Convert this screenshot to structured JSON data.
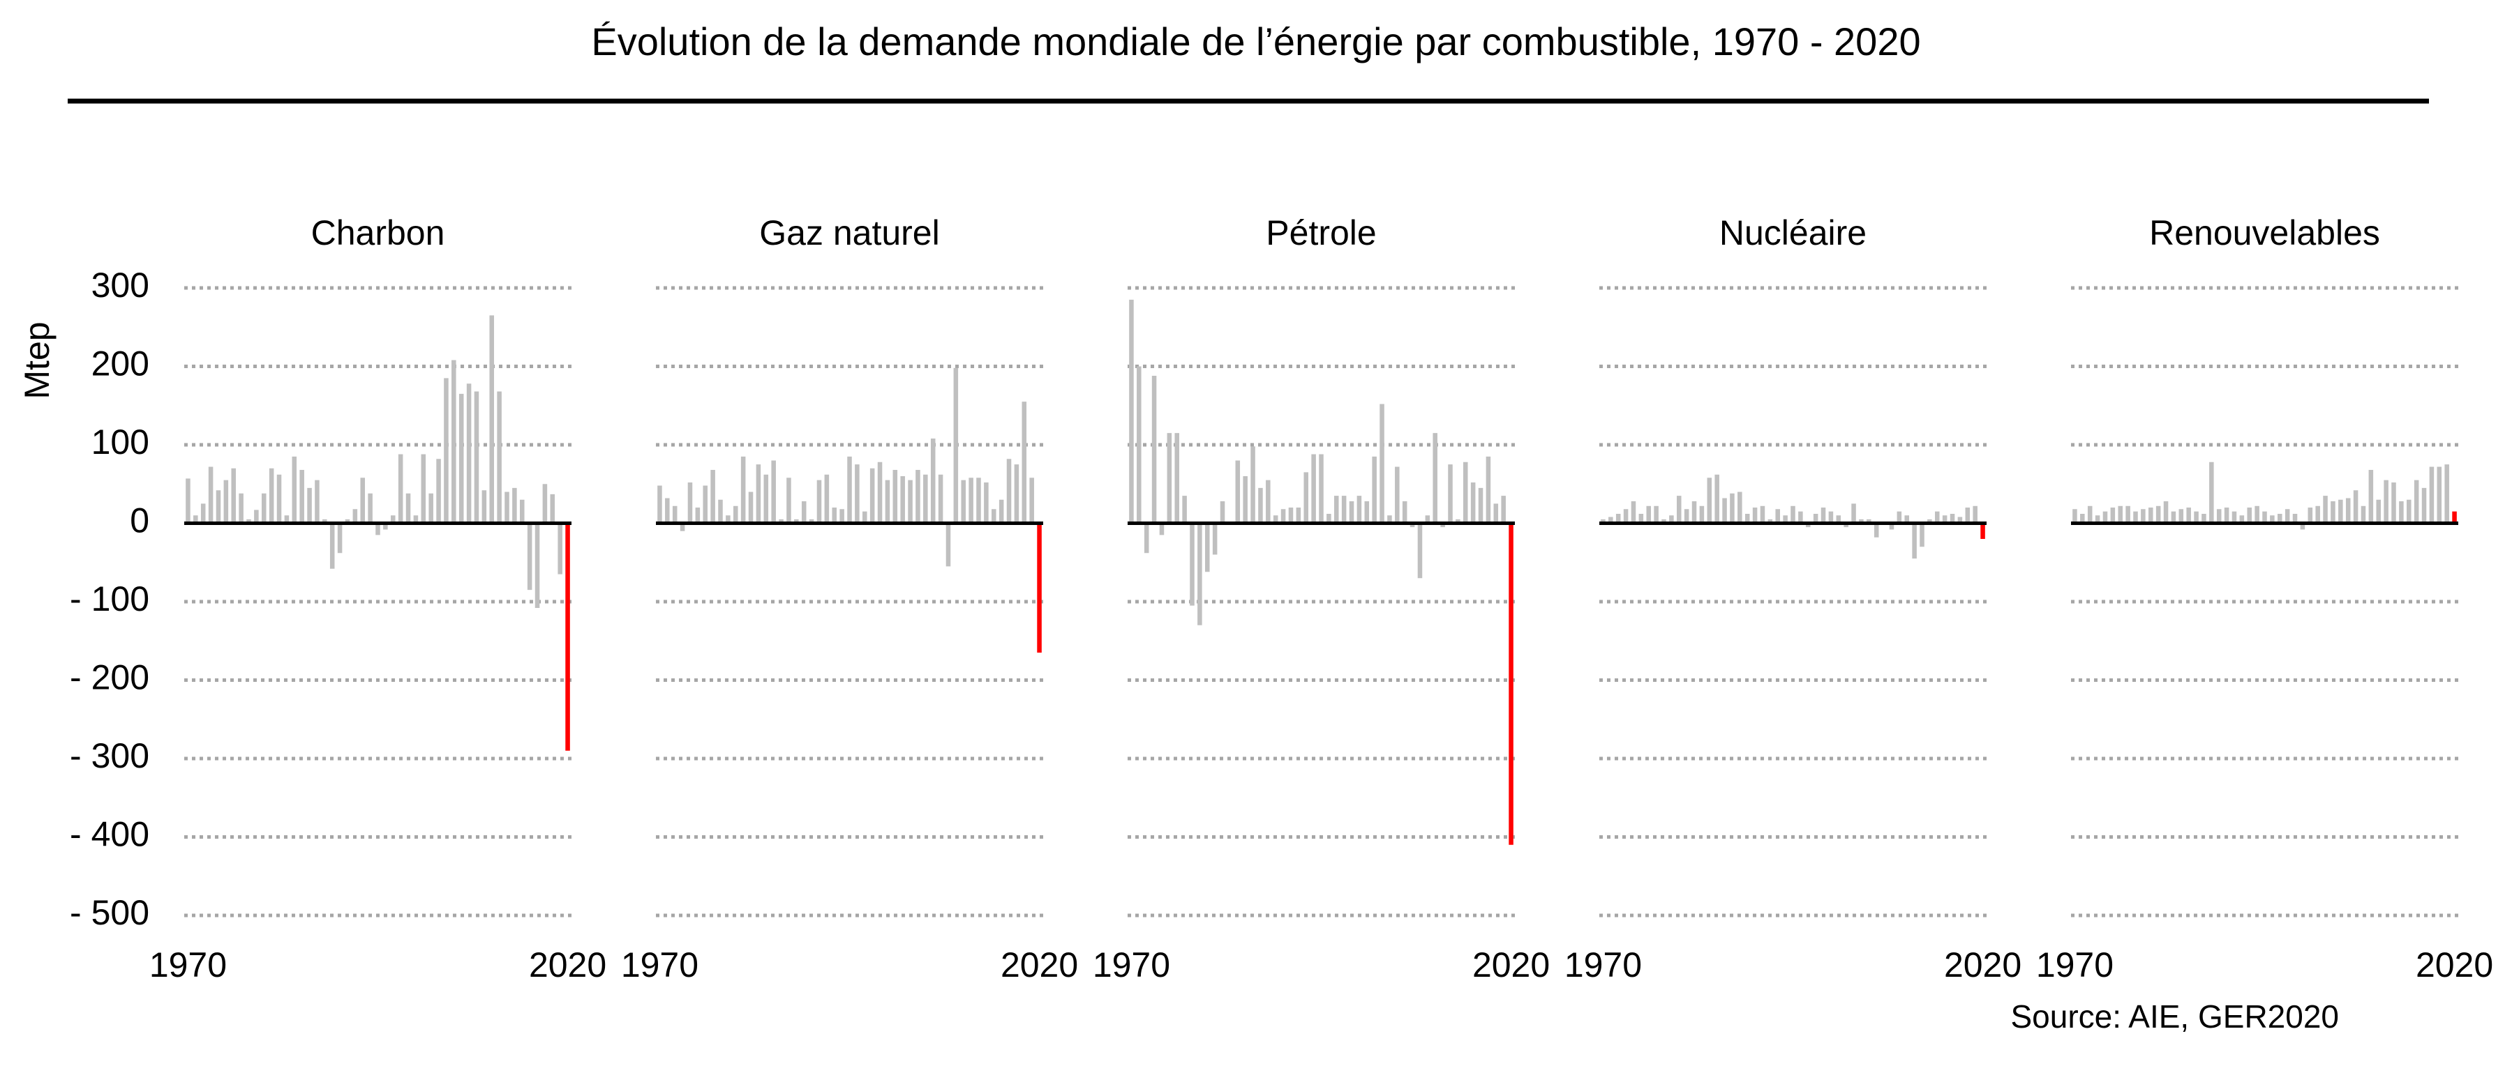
{
  "title": "Évolution de la demande mondiale de l’énergie par combustible, 1970 - 2020",
  "source": "Source: AIE, GER2020",
  "chart_data": [
    {
      "type": "bar",
      "title": "Charbon",
      "ylabel": "Mtep",
      "color": "#bfbfbf",
      "highlight": {
        "x": 2020,
        "color": "#ff0000"
      },
      "grid": true,
      "x": [
        1970,
        1971,
        1972,
        1973,
        1974,
        1975,
        1976,
        1977,
        1978,
        1979,
        1980,
        1981,
        1982,
        1983,
        1984,
        1985,
        1986,
        1987,
        1988,
        1989,
        1990,
        1991,
        1992,
        1993,
        1994,
        1995,
        1996,
        1997,
        1998,
        1999,
        2000,
        2001,
        2002,
        2003,
        2004,
        2005,
        2006,
        2007,
        2008,
        2009,
        2010,
        2011,
        2012,
        2013,
        2014,
        2015,
        2016,
        2017,
        2018,
        2019,
        2020
      ],
      "values": [
        57,
        10,
        25,
        72,
        42,
        55,
        70,
        38,
        5,
        17,
        38,
        70,
        62,
        10,
        85,
        68,
        45,
        55,
        5,
        -58,
        -38,
        5,
        18,
        58,
        38,
        -15,
        -8,
        10,
        88,
        38,
        10,
        88,
        38,
        82,
        185,
        208,
        165,
        178,
        168,
        42,
        265,
        168,
        40,
        45,
        30,
        -85,
        -108,
        50,
        37,
        -65,
        -290
      ],
      "xlim": [
        1969.5,
        2020.5
      ],
      "xticks": [
        1970,
        2020
      ],
      "ylim": [
        -500,
        300
      ],
      "yticks": [
        {
          "value": -500,
          "label": "- 500"
        },
        {
          "value": -400,
          "label": "- 400"
        },
        {
          "value": -300,
          "label": "- 300"
        },
        {
          "value": -200,
          "label": "- 200"
        },
        {
          "value": -100,
          "label": "- 100"
        },
        0,
        100,
        200,
        300
      ]
    },
    {
      "type": "bar",
      "title": "Gaz naturel",
      "color": "#bfbfbf",
      "highlight": {
        "x": 2020,
        "color": "#ff0000"
      },
      "grid": true,
      "x": [
        1970,
        1971,
        1972,
        1973,
        1974,
        1975,
        1976,
        1977,
        1978,
        1979,
        1980,
        1981,
        1982,
        1983,
        1984,
        1985,
        1986,
        1987,
        1988,
        1989,
        1990,
        1991,
        1992,
        1993,
        1994,
        1995,
        1996,
        1997,
        1998,
        1999,
        2000,
        2001,
        2002,
        2003,
        2004,
        2005,
        2006,
        2007,
        2008,
        2009,
        2010,
        2011,
        2012,
        2013,
        2014,
        2015,
        2016,
        2017,
        2018,
        2019,
        2020
      ],
      "values": [
        48,
        32,
        22,
        -10,
        52,
        20,
        48,
        68,
        30,
        10,
        22,
        85,
        40,
        75,
        62,
        80,
        5,
        58,
        5,
        28,
        5,
        55,
        62,
        20,
        18,
        85,
        75,
        15,
        70,
        78,
        55,
        68,
        60,
        55,
        68,
        62,
        108,
        62,
        -55,
        198,
        55,
        58,
        58,
        52,
        18,
        30,
        82,
        75,
        155,
        58,
        -165
      ],
      "xlim": [
        1969.5,
        2020.5
      ],
      "xticks": [
        1970,
        2020
      ],
      "ylim": [
        -500,
        300
      ],
      "yticks": [
        -500,
        -400,
        -300,
        -200,
        -100,
        0,
        100,
        200,
        300
      ]
    },
    {
      "type": "bar",
      "title": "Pétrole",
      "color": "#bfbfbf",
      "highlight": {
        "x": 2020,
        "color": "#ff0000"
      },
      "grid": true,
      "x": [
        1970,
        1971,
        1972,
        1973,
        1974,
        1975,
        1976,
        1977,
        1978,
        1979,
        1980,
        1981,
        1982,
        1983,
        1984,
        1985,
        1986,
        1987,
        1988,
        1989,
        1990,
        1991,
        1992,
        1993,
        1994,
        1995,
        1996,
        1997,
        1998,
        1999,
        2000,
        2001,
        2002,
        2003,
        2004,
        2005,
        2006,
        2007,
        2008,
        2009,
        2010,
        2011,
        2012,
        2013,
        2014,
        2015,
        2016,
        2017,
        2018,
        2019,
        2020
      ],
      "values": [
        285,
        200,
        -38,
        188,
        -15,
        115,
        115,
        35,
        -105,
        -130,
        -62,
        -40,
        28,
        0,
        80,
        60,
        98,
        45,
        55,
        10,
        18,
        20,
        20,
        65,
        88,
        88,
        12,
        35,
        35,
        28,
        35,
        28,
        85,
        152,
        10,
        72,
        28,
        -5,
        -70,
        10,
        115,
        -5,
        75,
        5,
        78,
        52,
        45,
        85,
        25,
        35,
        -410
      ],
      "xlim": [
        1969.5,
        2020.5
      ],
      "xticks": [
        1970,
        2020
      ],
      "ylim": [
        -500,
        300
      ],
      "yticks": [
        -500,
        -400,
        -300,
        -200,
        -100,
        0,
        100,
        200,
        300
      ]
    },
    {
      "type": "bar",
      "title": "Nucléaire",
      "color": "#bfbfbf",
      "highlight": {
        "x": 2020,
        "color": "#ff0000"
      },
      "grid": true,
      "x": [
        1970,
        1971,
        1972,
        1973,
        1974,
        1975,
        1976,
        1977,
        1978,
        1979,
        1980,
        1981,
        1982,
        1983,
        1984,
        1985,
        1986,
        1987,
        1988,
        1989,
        1990,
        1991,
        1992,
        1993,
        1994,
        1995,
        1996,
        1997,
        1998,
        1999,
        2000,
        2001,
        2002,
        2003,
        2004,
        2005,
        2006,
        2007,
        2008,
        2009,
        2010,
        2011,
        2012,
        2013,
        2014,
        2015,
        2016,
        2017,
        2018,
        2019,
        2020
      ],
      "values": [
        5,
        8,
        12,
        18,
        28,
        12,
        22,
        22,
        5,
        10,
        35,
        18,
        28,
        22,
        58,
        62,
        32,
        38,
        40,
        12,
        20,
        22,
        5,
        18,
        10,
        22,
        15,
        -5,
        12,
        20,
        15,
        10,
        -5,
        25,
        5,
        5,
        -18,
        2,
        -8,
        15,
        10,
        -45,
        -30,
        5,
        15,
        10,
        12,
        8,
        20,
        22,
        -20
      ],
      "xlim": [
        1969.5,
        2020.5
      ],
      "xticks": [
        1970,
        2020
      ],
      "ylim": [
        -500,
        300
      ],
      "yticks": [
        -500,
        -400,
        -300,
        -200,
        -100,
        0,
        100,
        200,
        300
      ]
    },
    {
      "type": "bar",
      "title": "Renouvelables",
      "color": "#bfbfbf",
      "highlight": {
        "x": 2020,
        "color": "#ff0000"
      },
      "grid": true,
      "x": [
        1970,
        1971,
        1972,
        1973,
        1974,
        1975,
        1976,
        1977,
        1978,
        1979,
        1980,
        1981,
        1982,
        1983,
        1984,
        1985,
        1986,
        1987,
        1988,
        1989,
        1990,
        1991,
        1992,
        1993,
        1994,
        1995,
        1996,
        1997,
        1998,
        1999,
        2000,
        2001,
        2002,
        2003,
        2004,
        2005,
        2006,
        2007,
        2008,
        2009,
        2010,
        2011,
        2012,
        2013,
        2014,
        2015,
        2016,
        2017,
        2018,
        2019,
        2020
      ],
      "values": [
        18,
        12,
        22,
        10,
        15,
        20,
        22,
        22,
        15,
        18,
        20,
        22,
        28,
        15,
        18,
        20,
        15,
        12,
        78,
        18,
        20,
        15,
        10,
        20,
        22,
        15,
        10,
        12,
        18,
        12,
        -8,
        20,
        22,
        35,
        28,
        30,
        32,
        42,
        22,
        68,
        30,
        55,
        52,
        28,
        30,
        55,
        45,
        72,
        72,
        75,
        15
      ],
      "xlim": [
        1969.5,
        2020.5
      ],
      "xticks": [
        1970,
        2020
      ],
      "ylim": [
        -500,
        300
      ],
      "yticks": [
        -500,
        -400,
        -300,
        -200,
        -100,
        0,
        100,
        200,
        300
      ]
    }
  ]
}
